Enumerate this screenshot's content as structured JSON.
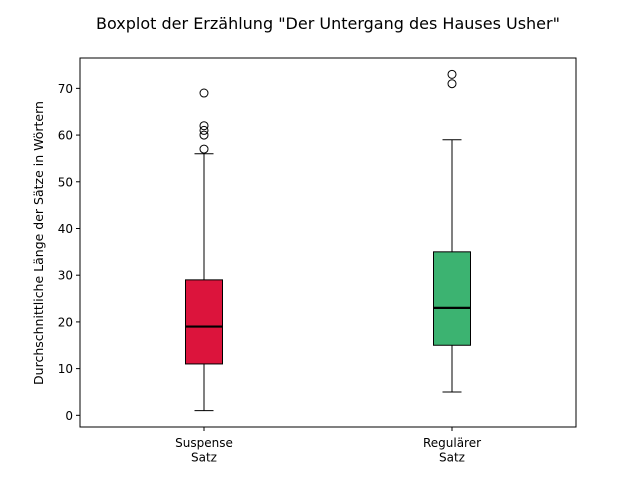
{
  "chart_data": {
    "type": "boxplot",
    "title": "Boxplot der Erzählung \"Der Untergang des Hauses Usher\"",
    "xlabel": "",
    "ylabel": "Durchschnittliche Länge der Sätze in Wörtern",
    "ylim": [
      -2.5,
      76.5
    ],
    "yticks": [
      0,
      10,
      20,
      30,
      40,
      50,
      60,
      70
    ],
    "grid": false,
    "categories": [
      [
        "Suspense",
        "Satz"
      ],
      [
        "Regulärer",
        "Satz"
      ]
    ],
    "boxes": [
      {
        "whisker_low": 1,
        "q1": 11,
        "median": 19,
        "q3": 29,
        "whisker_high": 56,
        "outliers": [
          57,
          60,
          61,
          62,
          69
        ],
        "color": "#dc143c"
      },
      {
        "whisker_low": 5,
        "q1": 15,
        "median": 23,
        "q3": 35,
        "whisker_high": 59,
        "outliers": [
          71,
          73
        ],
        "color": "#3cb371"
      }
    ]
  }
}
